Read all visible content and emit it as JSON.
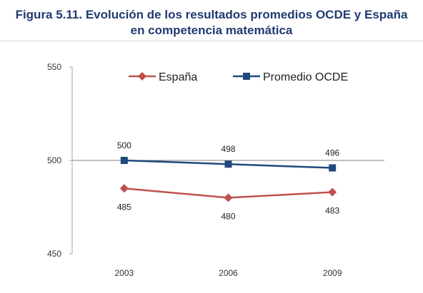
{
  "chart_data": {
    "type": "line",
    "title_line1": "Figura 5.11. Evolución de los resultados promedios OCDE y España",
    "title_line2": "en competencia matemática",
    "categories": [
      "2003",
      "2006",
      "2009"
    ],
    "yticks": [
      "550",
      "500",
      "450"
    ],
    "ylim": [
      450,
      550
    ],
    "legend_position": "top",
    "series": [
      {
        "name": "España",
        "values": [
          485,
          480,
          483
        ],
        "labels": [
          "485",
          "480",
          "483"
        ],
        "color": "#c0504d",
        "marker": "diamond",
        "label_position": "below"
      },
      {
        "name": "Promedio OCDE",
        "values": [
          500,
          498,
          496
        ],
        "labels": [
          "500",
          "498",
          "496"
        ],
        "color": "#1f497d",
        "marker": "square",
        "label_position": "above"
      }
    ]
  }
}
